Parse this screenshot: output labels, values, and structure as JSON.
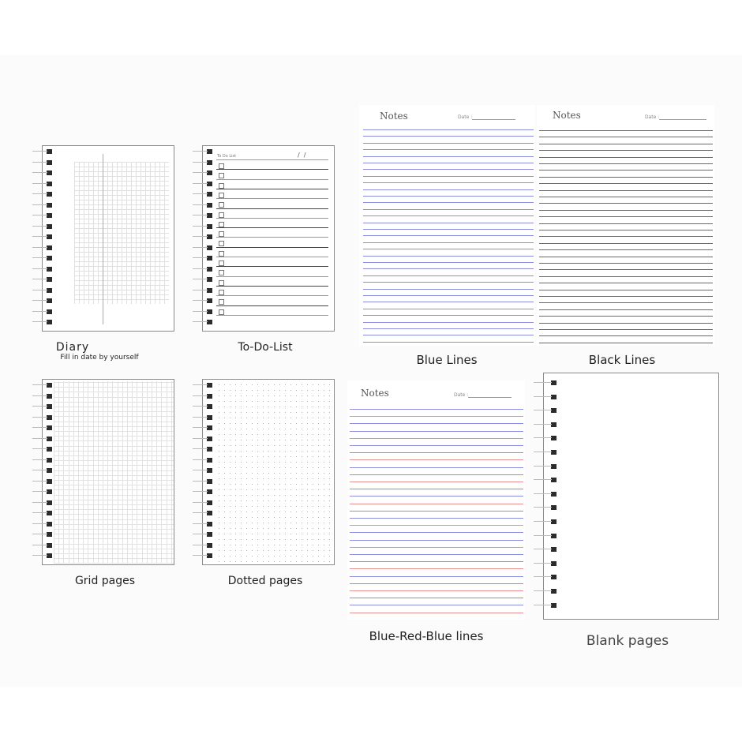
{
  "pages": {
    "diary": {
      "label": "Diary",
      "sublabel": "Fill in date by yourself"
    },
    "todo": {
      "label": "To-Do-List",
      "header": "To Do List",
      "date_marks": "/  /"
    },
    "grid": {
      "label": "Grid pages"
    },
    "dotted": {
      "label": "Dotted pages"
    },
    "blue_lines": {
      "label": "Blue Lines",
      "title": "Notes",
      "date_label": "Date :",
      "line_color": "#8c8fe0"
    },
    "black_lines": {
      "label": "Black Lines",
      "title": "Notes",
      "date_label": "Date :",
      "line_color": "#6a6a6a"
    },
    "blue_red_blue": {
      "label": "Blue-Red-Blue lines",
      "title": "Notes",
      "date_label": "Date :",
      "colors": [
        "#8c8fe0",
        "#e89090",
        "#8c8fe0"
      ]
    },
    "blank": {
      "label": "Blank pages"
    }
  }
}
